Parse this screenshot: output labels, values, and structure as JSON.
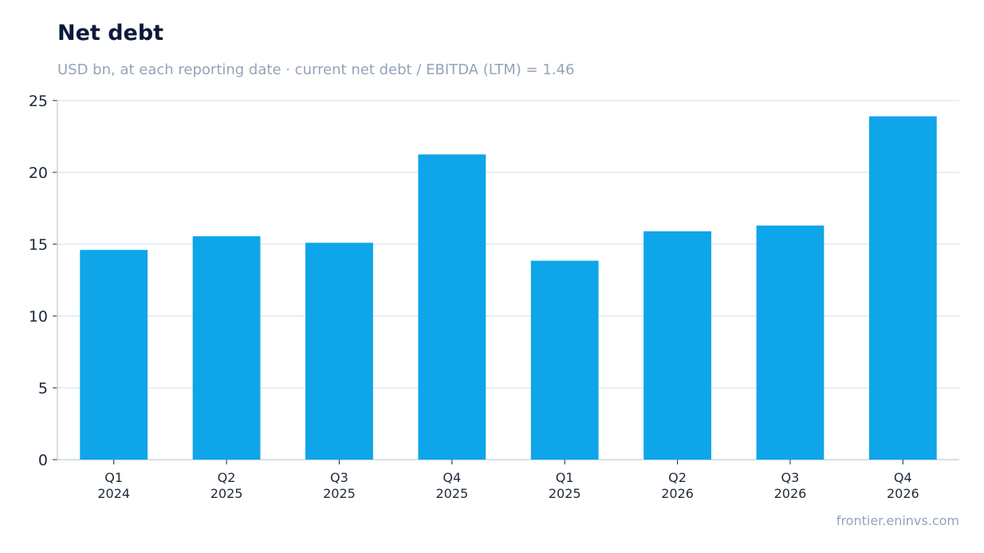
{
  "chart_data": {
    "type": "bar",
    "title": "Net debt",
    "subtitle": "USD bn, at each reporting date · current net debt / EBITDA (LTM) = 1.46",
    "categories": [
      [
        "Q1",
        "2024"
      ],
      [
        "Q2",
        "2025"
      ],
      [
        "Q3",
        "2025"
      ],
      [
        "Q4",
        "2025"
      ],
      [
        "Q1",
        "2025"
      ],
      [
        "Q2",
        "2026"
      ],
      [
        "Q3",
        "2026"
      ],
      [
        "Q4",
        "2026"
      ]
    ],
    "values": [
      14.6,
      15.55,
      15.1,
      21.25,
      13.85,
      15.9,
      16.3,
      23.9
    ],
    "ylim": [
      0,
      25
    ],
    "yticks": [
      0,
      5,
      10,
      15,
      20,
      25
    ],
    "grid": true,
    "bar_color": "#0fa5e9",
    "grid_color": "#e2e8f0",
    "xlabel": "",
    "ylabel": ""
  },
  "footer": {
    "source": "frontier.eninvs.com"
  }
}
